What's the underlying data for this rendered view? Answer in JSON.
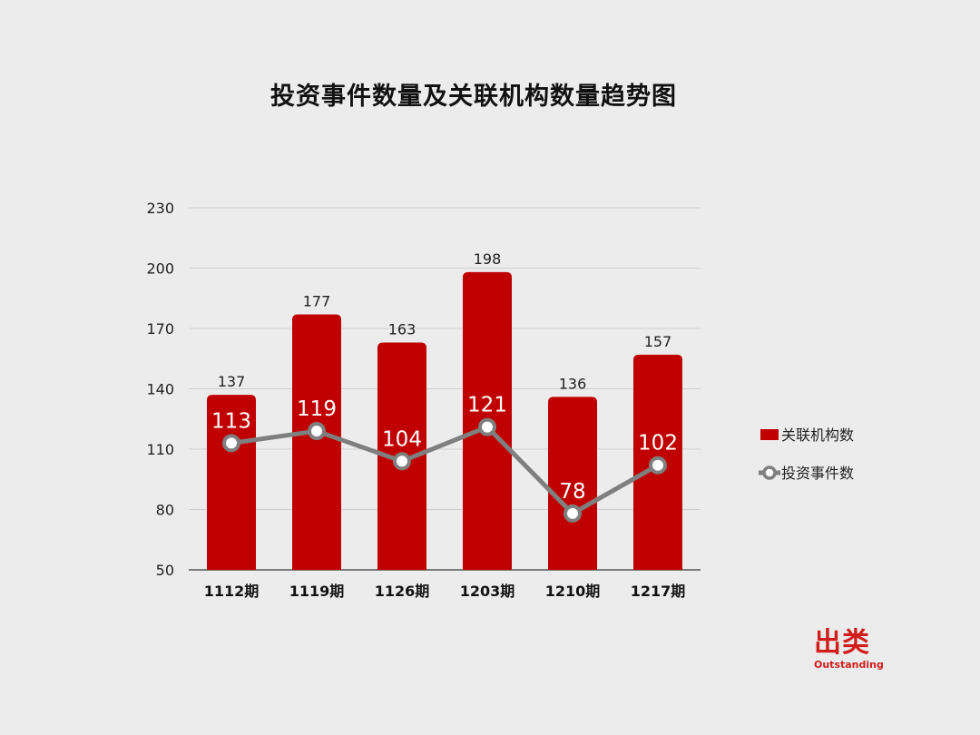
{
  "chart_data": {
    "type": "bar",
    "title": "投资事件数量及关联机构数量趋势图",
    "categories": [
      "1112期",
      "1119期",
      "1126期",
      "1203期",
      "1210期",
      "1217期"
    ],
    "series": [
      {
        "name": "关联机构数",
        "type": "bar",
        "color": "#c00000",
        "values": [
          137,
          177,
          163,
          198,
          136,
          157
        ]
      },
      {
        "name": "投资事件数",
        "type": "line",
        "color": "#7f7f7f",
        "values": [
          113,
          119,
          104,
          121,
          78,
          102
        ]
      }
    ],
    "ylim": [
      50,
      230
    ],
    "yticks": [
      50,
      80,
      110,
      140,
      170,
      200,
      230
    ],
    "grid": true,
    "legend_position": "right"
  },
  "logo": {
    "cn": "出类",
    "en": "Outstanding"
  }
}
